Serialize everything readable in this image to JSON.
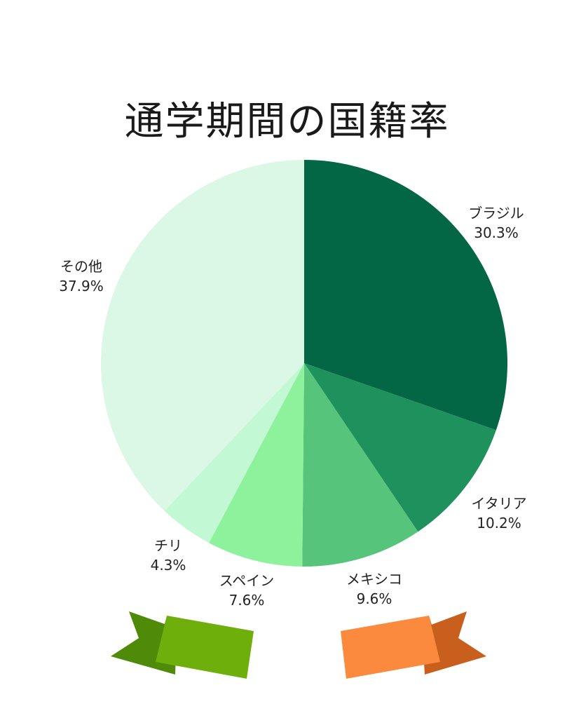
{
  "chart_data": {
    "type": "pie",
    "title": "通学期間の国籍率",
    "slices": [
      {
        "name": "ブラジル",
        "value": 30.3,
        "label": "30.3%",
        "color": "#036645"
      },
      {
        "name": "イタリア",
        "value": 10.2,
        "label": "10.2%",
        "color": "#1e915d"
      },
      {
        "name": "メキシコ",
        "value": 9.6,
        "label": "9.6%",
        "color": "#56c47b"
      },
      {
        "name": "スペイン",
        "value": 7.6,
        "label": "7.6%",
        "color": "#8df29b"
      },
      {
        "name": "チリ",
        "value": 4.3,
        "label": "4.3%",
        "color": "#c3f8d4"
      },
      {
        "name": "その他",
        "value": 37.9,
        "label": "37.9%",
        "color": "#dbf8e6"
      }
    ],
    "start_angle": "12 o'clock",
    "direction": "clockwise"
  },
  "decorations": {
    "ribbon_left_color": "#6faf0b",
    "ribbon_left_fold_color": "#4f8a08",
    "ribbon_right_color": "#fc8a3e",
    "ribbon_right_fold_color": "#c95f1c"
  }
}
